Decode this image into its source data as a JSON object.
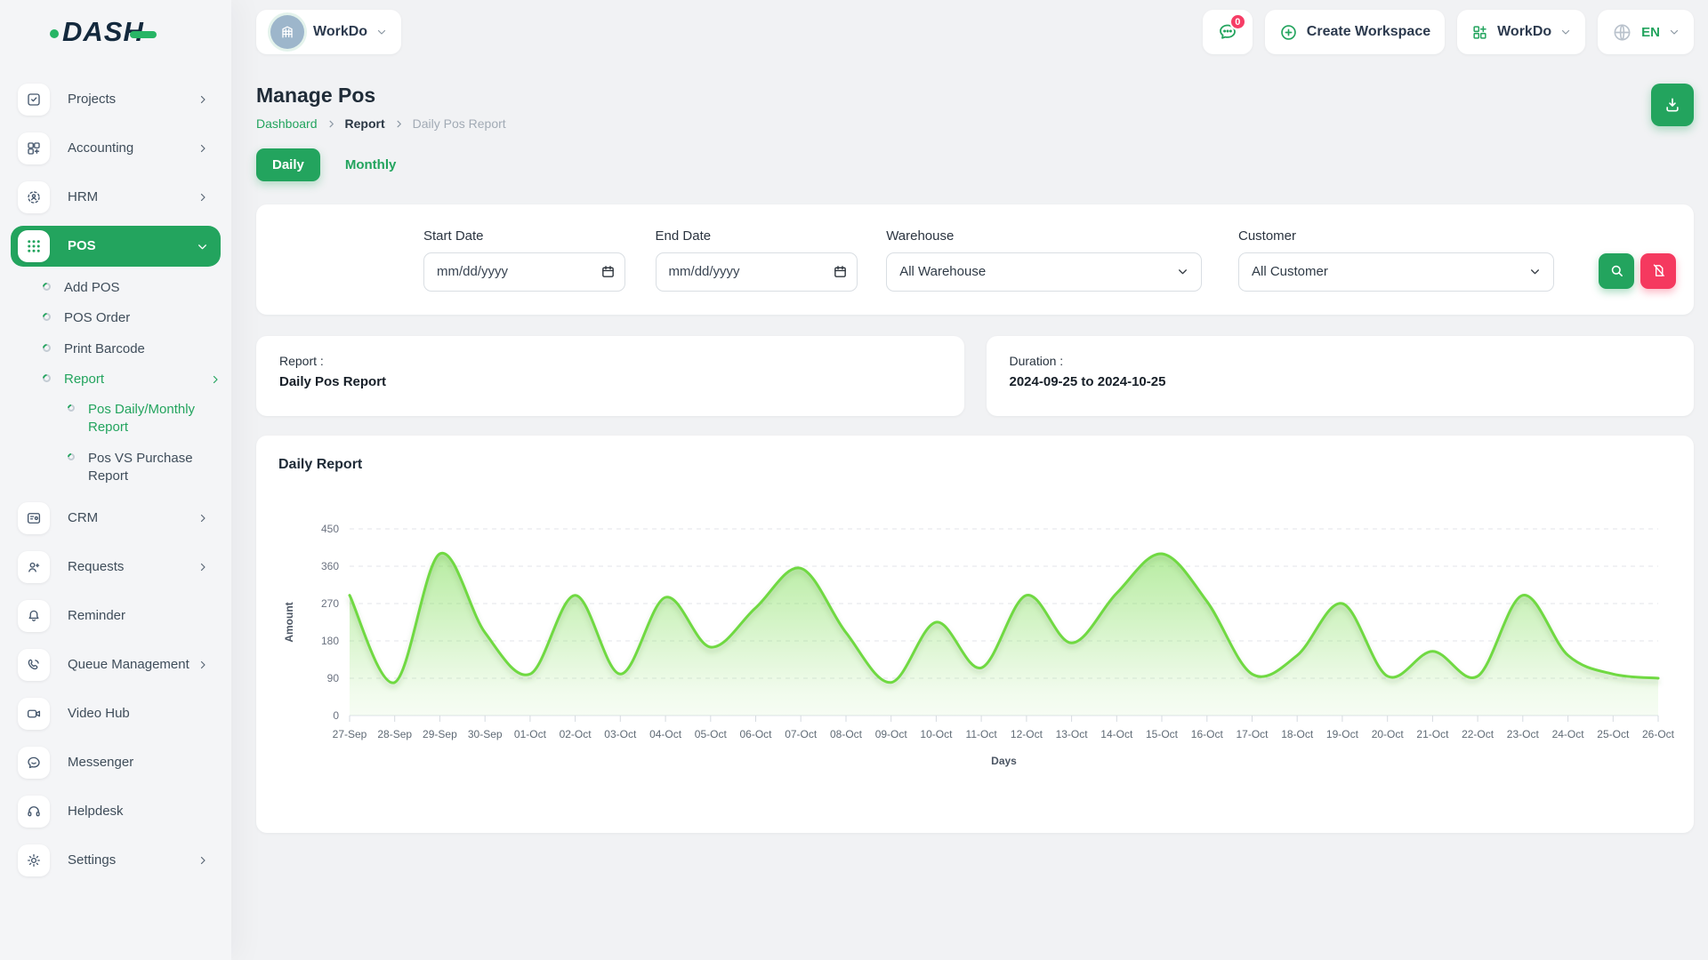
{
  "colors": {
    "primary_green": "#23a45e",
    "chart_line_green": "#6fd943",
    "danger_pink": "#f5395f",
    "logo_navy": "#13293d"
  },
  "brand": {
    "logo": "DASH"
  },
  "header": {
    "workspace_name": "WorkDo",
    "chat_badge": "0",
    "create_workspace": "Create Workspace",
    "app_switcher": "WorkDo",
    "language": "EN"
  },
  "sidebar": {
    "items": [
      {
        "label": "Projects"
      },
      {
        "label": "Accounting"
      },
      {
        "label": "HRM"
      },
      {
        "label": "POS"
      },
      {
        "label": "Add POS"
      },
      {
        "label": "POS Order"
      },
      {
        "label": "Print Barcode"
      },
      {
        "label": "Report"
      },
      {
        "label": "Pos Daily/Monthly Report"
      },
      {
        "label": "Pos VS Purchase Report"
      },
      {
        "label": "CRM"
      },
      {
        "label": "Requests"
      },
      {
        "label": "Reminder"
      },
      {
        "label": "Queue Management"
      },
      {
        "label": "Video Hub"
      },
      {
        "label": "Messenger"
      },
      {
        "label": "Helpdesk"
      },
      {
        "label": "Settings"
      }
    ]
  },
  "page": {
    "title": "Manage Pos",
    "breadcrumb": {
      "home": "Dashboard",
      "section": "Report",
      "current": "Daily Pos Report"
    },
    "tabs": {
      "daily": "Daily",
      "monthly": "Monthly"
    },
    "filters": {
      "start_date": {
        "label": "Start Date",
        "placeholder": "mm/dd/yyyy"
      },
      "end_date": {
        "label": "End Date",
        "placeholder": "mm/dd/yyyy"
      },
      "warehouse": {
        "label": "Warehouse",
        "value": "All Warehouse"
      },
      "customer": {
        "label": "Customer",
        "value": "All Customer"
      }
    },
    "summary": {
      "report_label": "Report :",
      "report_value": "Daily Pos Report",
      "duration_label": "Duration :",
      "duration_value": "2024-09-25 to 2024-10-25"
    }
  },
  "chart_data": {
    "type": "area",
    "title": "Daily Report",
    "xlabel": "Days",
    "ylabel": "Amount",
    "ylim": [
      0,
      450
    ],
    "yticks": [
      0,
      90,
      180,
      270,
      360,
      450
    ],
    "grid": "dashed-horizontal",
    "legend": "none",
    "line_color": "#6fd943",
    "categories": [
      "27-Sep",
      "28-Sep",
      "29-Sep",
      "30-Sep",
      "01-Oct",
      "02-Oct",
      "03-Oct",
      "04-Oct",
      "05-Oct",
      "06-Oct",
      "07-Oct",
      "08-Oct",
      "09-Oct",
      "10-Oct",
      "11-Oct",
      "12-Oct",
      "13-Oct",
      "14-Oct",
      "15-Oct",
      "16-Oct",
      "17-Oct",
      "18-Oct",
      "19-Oct",
      "20-Oct",
      "21-Oct",
      "22-Oct",
      "23-Oct",
      "24-Oct",
      "25-Oct",
      "26-Oct"
    ],
    "series": [
      {
        "name": "Amount",
        "values": [
          290,
          80,
          390,
          200,
          100,
          290,
          100,
          285,
          165,
          260,
          355,
          200,
          80,
          225,
          115,
          290,
          175,
          295,
          390,
          275,
          100,
          145,
          270,
          95,
          155,
          95,
          290,
          145,
          100,
          90
        ]
      }
    ]
  }
}
